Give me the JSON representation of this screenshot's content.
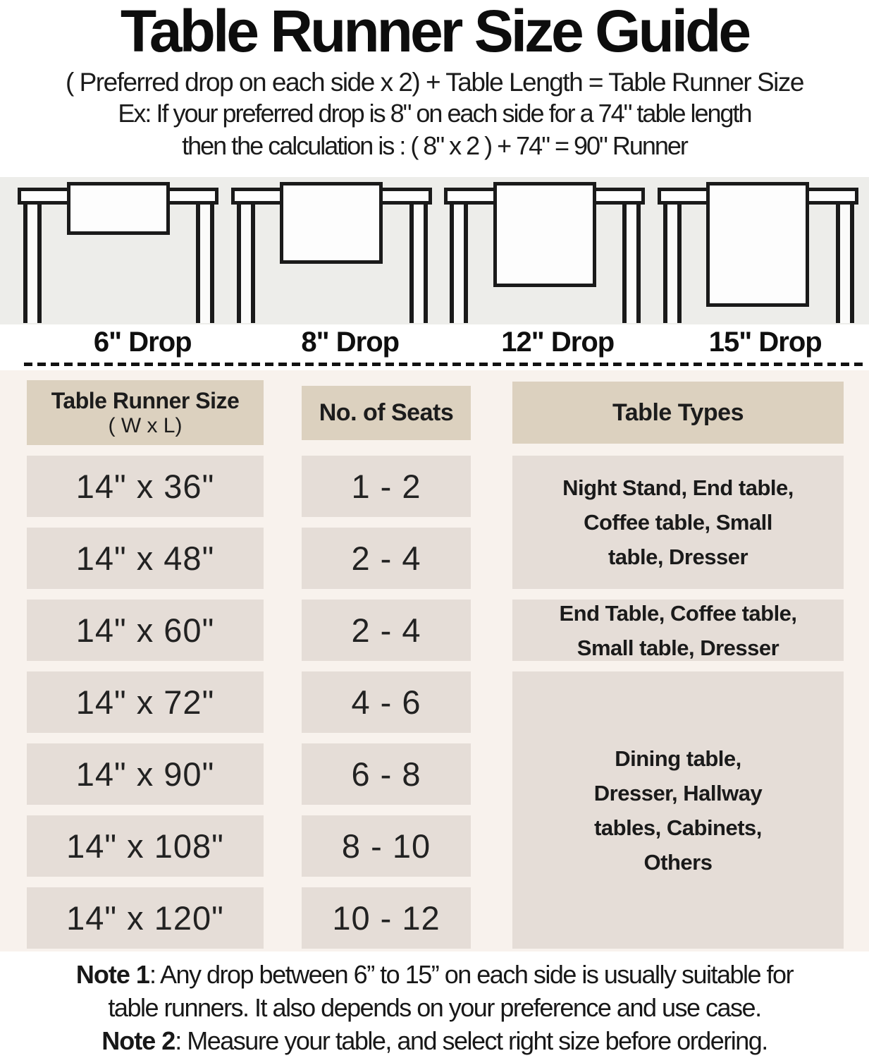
{
  "title": "Table Runner Size Guide",
  "formula": "( Preferred drop on each side x 2) + Table Length = Table Runner Size",
  "example": {
    "line1": "Ex: If your preferred drop is 8\" on each side for a 74\" table length",
    "line2": "then the calculation is : ( 8\" x 2 ) + 74\" = 90\" Runner"
  },
  "drop_diagrams": [
    {
      "label": "6\" Drop"
    },
    {
      "label": "8\" Drop"
    },
    {
      "label": "12\" Drop"
    },
    {
      "label": "15\" Drop"
    }
  ],
  "size_table": {
    "headers": {
      "runner_size_line1": "Table Runner Size",
      "runner_size_line2": "( W x L)",
      "seats": "No. of Seats",
      "table_types": "Table Types"
    },
    "rows": [
      {
        "size": "14\" x 36\"",
        "seats": "1 - 2"
      },
      {
        "size": "14\" x 48\"",
        "seats": "2 - 4"
      },
      {
        "size": "14\" x 60\"",
        "seats": "2 - 4"
      },
      {
        "size": "14\" x 72\"",
        "seats": "4 - 6"
      },
      {
        "size": "14\" x 90\"",
        "seats": "6 - 8"
      },
      {
        "size": "14\" x 108\"",
        "seats": "8 - 10"
      },
      {
        "size": "14\" x 120\"",
        "seats": "10 - 12"
      }
    ],
    "table_types": [
      {
        "text": "Night Stand, End table, Coffee table, Small table, Dresser",
        "lines": [
          "Night Stand, End table,",
          "Coffee table, Small",
          "table, Dresser"
        ],
        "spans_rows": [
          1,
          2
        ]
      },
      {
        "text": "End Table, Coffee table, Small table, Dresser",
        "lines": [
          "End Table, Coffee table,",
          "Small table, Dresser"
        ],
        "spans_rows": [
          3
        ]
      },
      {
        "text": "Dining table, Dresser, Hallway tables, Cabinets, Others",
        "lines": [
          "Dining table,",
          "Dresser, Hallway",
          "tables, Cabinets,",
          "Others"
        ],
        "spans_rows": [
          4,
          5,
          6,
          7
        ]
      }
    ]
  },
  "notes": {
    "note1_label": "Note 1",
    "note1_line1": ": Any drop between 6” to 15” on each side is usually suitable for",
    "note1_line2": "table runners. It also depends on your preference and use case.",
    "note2_label": "Note 2",
    "note2_line1": ": Measure your table, and select right size before ordering."
  },
  "colors": {
    "header_cell_bg": "#dcd1bf",
    "data_cell_bg": "#e5ddd7",
    "table_section_bg": "#f8f2ed",
    "diagram_band_bg": "#ededea",
    "drawing_line": "#1a1a1a",
    "text": "#141414"
  }
}
